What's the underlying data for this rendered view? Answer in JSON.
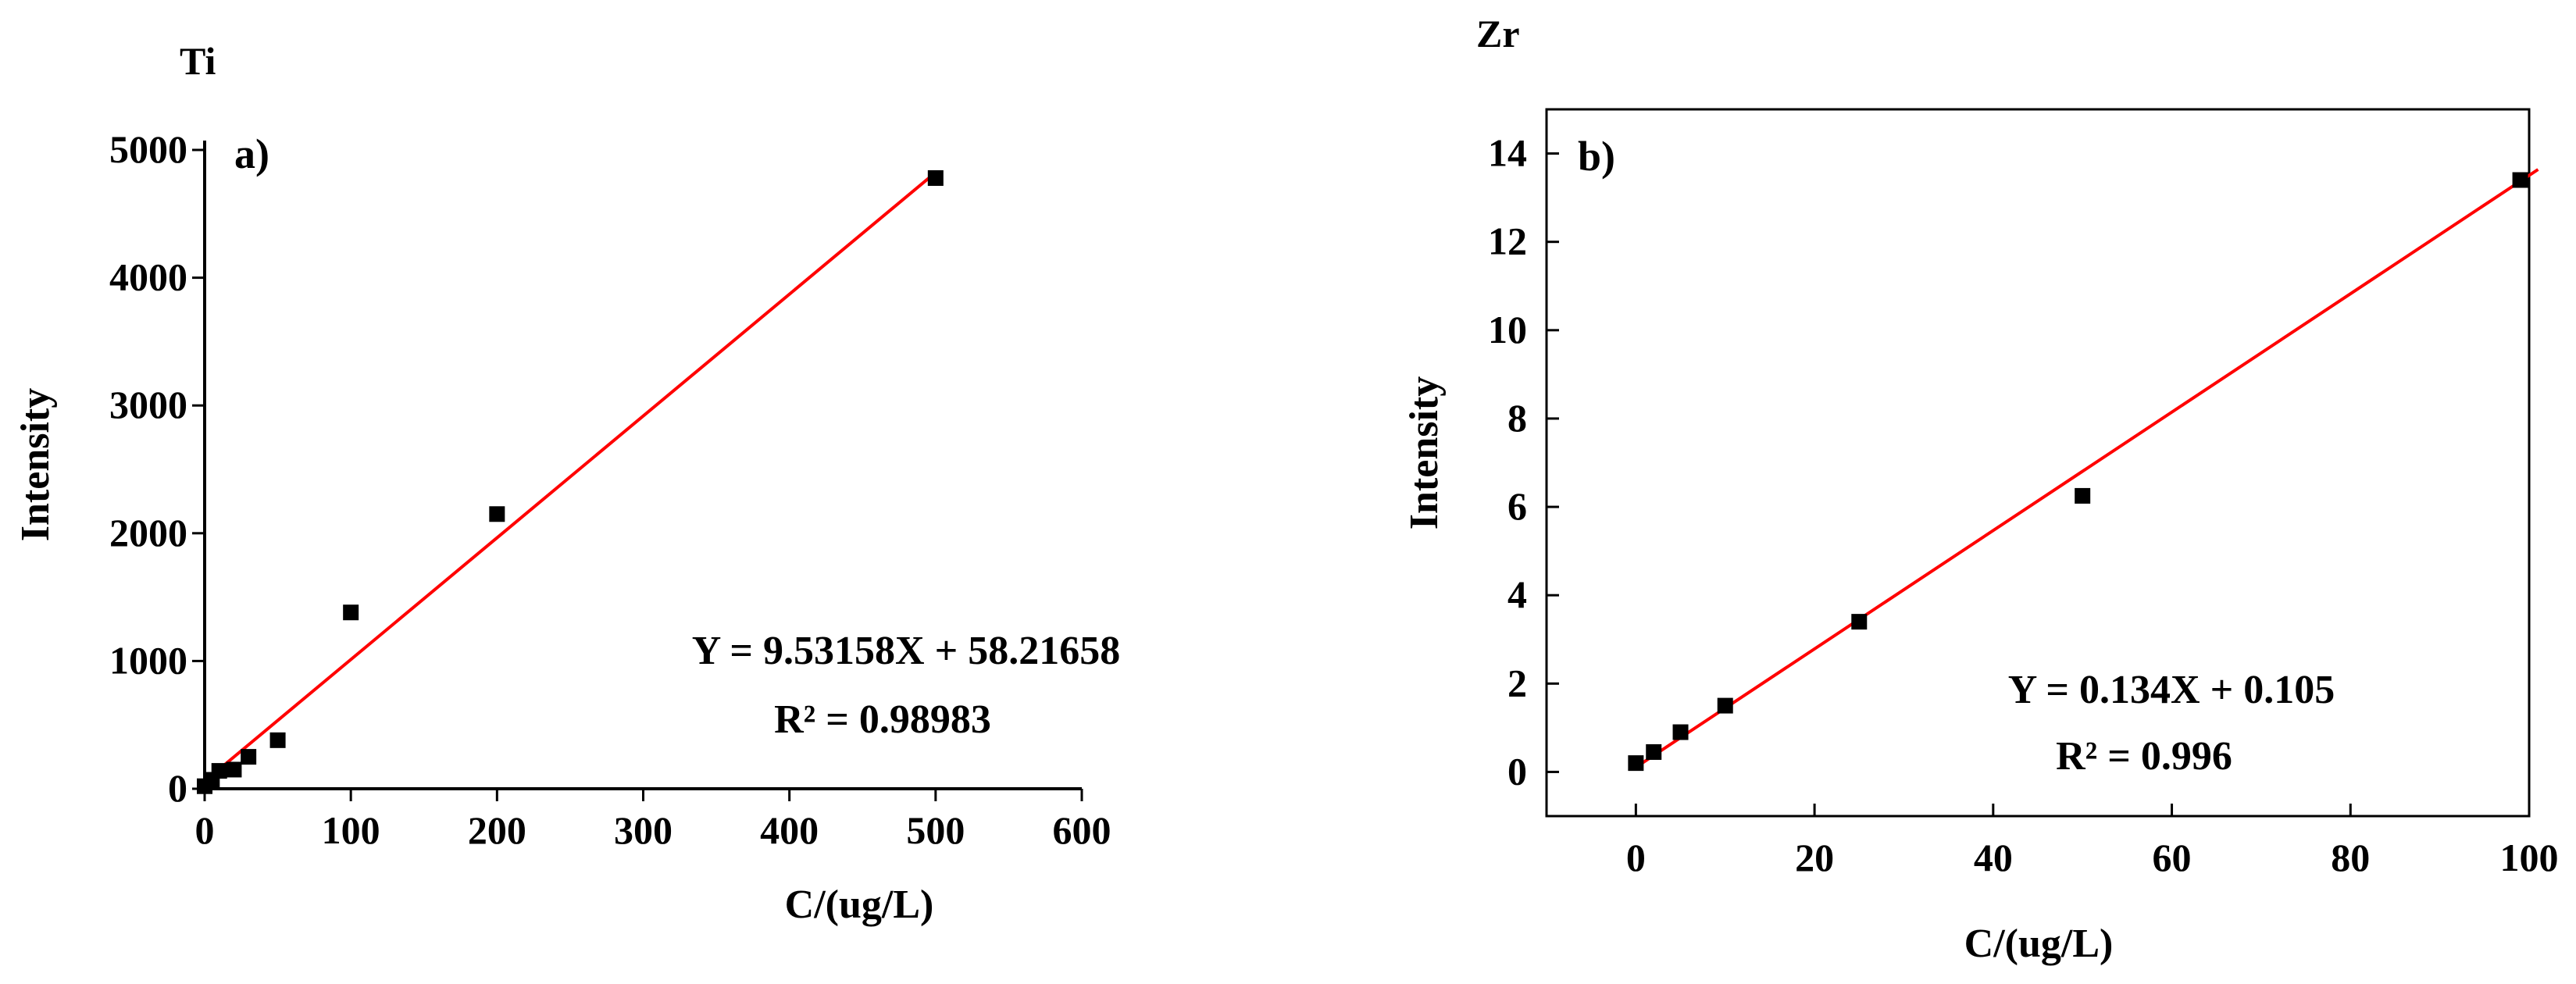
{
  "chart_data": [
    {
      "type": "scatter",
      "element_label": "Ti",
      "panel_label": "a)",
      "xlabel": "C/(ug/L)",
      "ylabel": "Intensity",
      "xlim": [
        0,
        600
      ],
      "ylim": [
        0,
        5000
      ],
      "x_ticks": [
        0,
        100,
        200,
        300,
        400,
        500,
        600
      ],
      "y_ticks": [
        0,
        1000,
        2000,
        3000,
        4000,
        5000
      ],
      "x": [
        0,
        5,
        10,
        20,
        30,
        50,
        100,
        200,
        500
      ],
      "y": [
        20,
        70,
        140,
        150,
        250,
        380,
        1380,
        2150,
        4780
      ],
      "fit": {
        "slope": 9.53158,
        "intercept": 58.21658,
        "x_range": [
          0,
          500
        ]
      },
      "equation": "Y = 9.53158X + 58.21658",
      "r2_text": "R² = 0.98983",
      "colors": {
        "points": "#000000",
        "fit_line": "#ff0000"
      },
      "grid": false,
      "legend": "none"
    },
    {
      "type": "scatter",
      "element_label": "Zr",
      "panel_label": "b)",
      "xlabel": "C/(ug/L)",
      "ylabel": "Intensity",
      "xlim": [
        -10,
        100
      ],
      "ylim": [
        -1,
        15
      ],
      "x_ticks": [
        0,
        20,
        40,
        60,
        80,
        100
      ],
      "y_ticks": [
        0,
        2,
        4,
        6,
        8,
        10,
        12,
        14
      ],
      "x": [
        0,
        2,
        5,
        10,
        25,
        50,
        99
      ],
      "y": [
        0.2,
        0.45,
        0.9,
        1.5,
        3.4,
        6.25,
        13.4
      ],
      "fit": {
        "slope": 0.134,
        "intercept": 0.105,
        "x_range": [
          0,
          101
        ]
      },
      "equation": "Y = 0.134X + 0.105",
      "r2_text": "R² = 0.996",
      "colors": {
        "points": "#000000",
        "fit_line": "#ff0000"
      },
      "grid": false,
      "legend": "none"
    }
  ]
}
